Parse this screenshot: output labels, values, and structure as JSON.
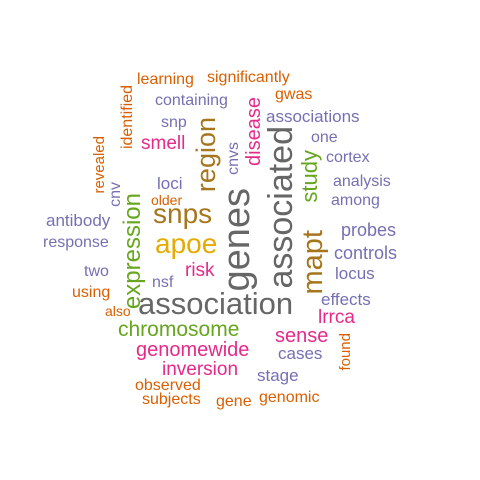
{
  "colors": {
    "orange": "#D95F02",
    "purple": "#7570B3",
    "magenta": "#E7298A",
    "green": "#66A61E",
    "gold": "#E6AB02",
    "brown": "#A6761D",
    "gray": "#666666"
  },
  "words": [
    {
      "text": "learning",
      "color": "orange"
    },
    {
      "text": "significantly",
      "color": "orange"
    },
    {
      "text": "gwas",
      "color": "orange"
    },
    {
      "text": "containing",
      "color": "purple"
    },
    {
      "text": "identified",
      "color": "orange"
    },
    {
      "text": "associations",
      "color": "purple"
    },
    {
      "text": "snp",
      "color": "purple"
    },
    {
      "text": "one",
      "color": "purple"
    },
    {
      "text": "smell",
      "color": "magenta"
    },
    {
      "text": "cortex",
      "color": "purple"
    },
    {
      "text": "revealed",
      "color": "orange"
    },
    {
      "text": "analysis",
      "color": "purple"
    },
    {
      "text": "loci",
      "color": "purple"
    },
    {
      "text": "among",
      "color": "purple"
    },
    {
      "text": "cnv",
      "color": "purple"
    },
    {
      "text": "older",
      "color": "orange"
    },
    {
      "text": "antibody",
      "color": "purple"
    },
    {
      "text": "probes",
      "color": "purple"
    },
    {
      "text": "response",
      "color": "purple"
    },
    {
      "text": "controls",
      "color": "purple"
    },
    {
      "text": "two",
      "color": "purple"
    },
    {
      "text": "risk",
      "color": "magenta"
    },
    {
      "text": "locus",
      "color": "purple"
    },
    {
      "text": "nsf",
      "color": "purple"
    },
    {
      "text": "using",
      "color": "orange"
    },
    {
      "text": "effects",
      "color": "purple"
    },
    {
      "text": "also",
      "color": "orange"
    },
    {
      "text": "lrrca",
      "color": "magenta"
    },
    {
      "text": "chromosome",
      "color": "green"
    },
    {
      "text": "sense",
      "color": "magenta"
    },
    {
      "text": "genomewide",
      "color": "magenta"
    },
    {
      "text": "cases",
      "color": "purple"
    },
    {
      "text": "found",
      "color": "orange"
    },
    {
      "text": "inversion",
      "color": "magenta"
    },
    {
      "text": "stage",
      "color": "purple"
    },
    {
      "text": "observed",
      "color": "orange"
    },
    {
      "text": "subjects",
      "color": "orange"
    },
    {
      "text": "gene",
      "color": "orange"
    },
    {
      "text": "genomic",
      "color": "orange"
    },
    {
      "text": "region",
      "color": "brown"
    },
    {
      "text": "disease",
      "color": "magenta"
    },
    {
      "text": "cnvs",
      "color": "purple"
    },
    {
      "text": "associated",
      "color": "gray"
    },
    {
      "text": "study",
      "color": "green"
    },
    {
      "text": "snps",
      "color": "brown"
    },
    {
      "text": "expression",
      "color": "green"
    },
    {
      "text": "genes",
      "color": "gray"
    },
    {
      "text": "apoe",
      "color": "gold"
    },
    {
      "text": "mapt",
      "color": "brown"
    },
    {
      "text": "association",
      "color": "gray"
    }
  ]
}
